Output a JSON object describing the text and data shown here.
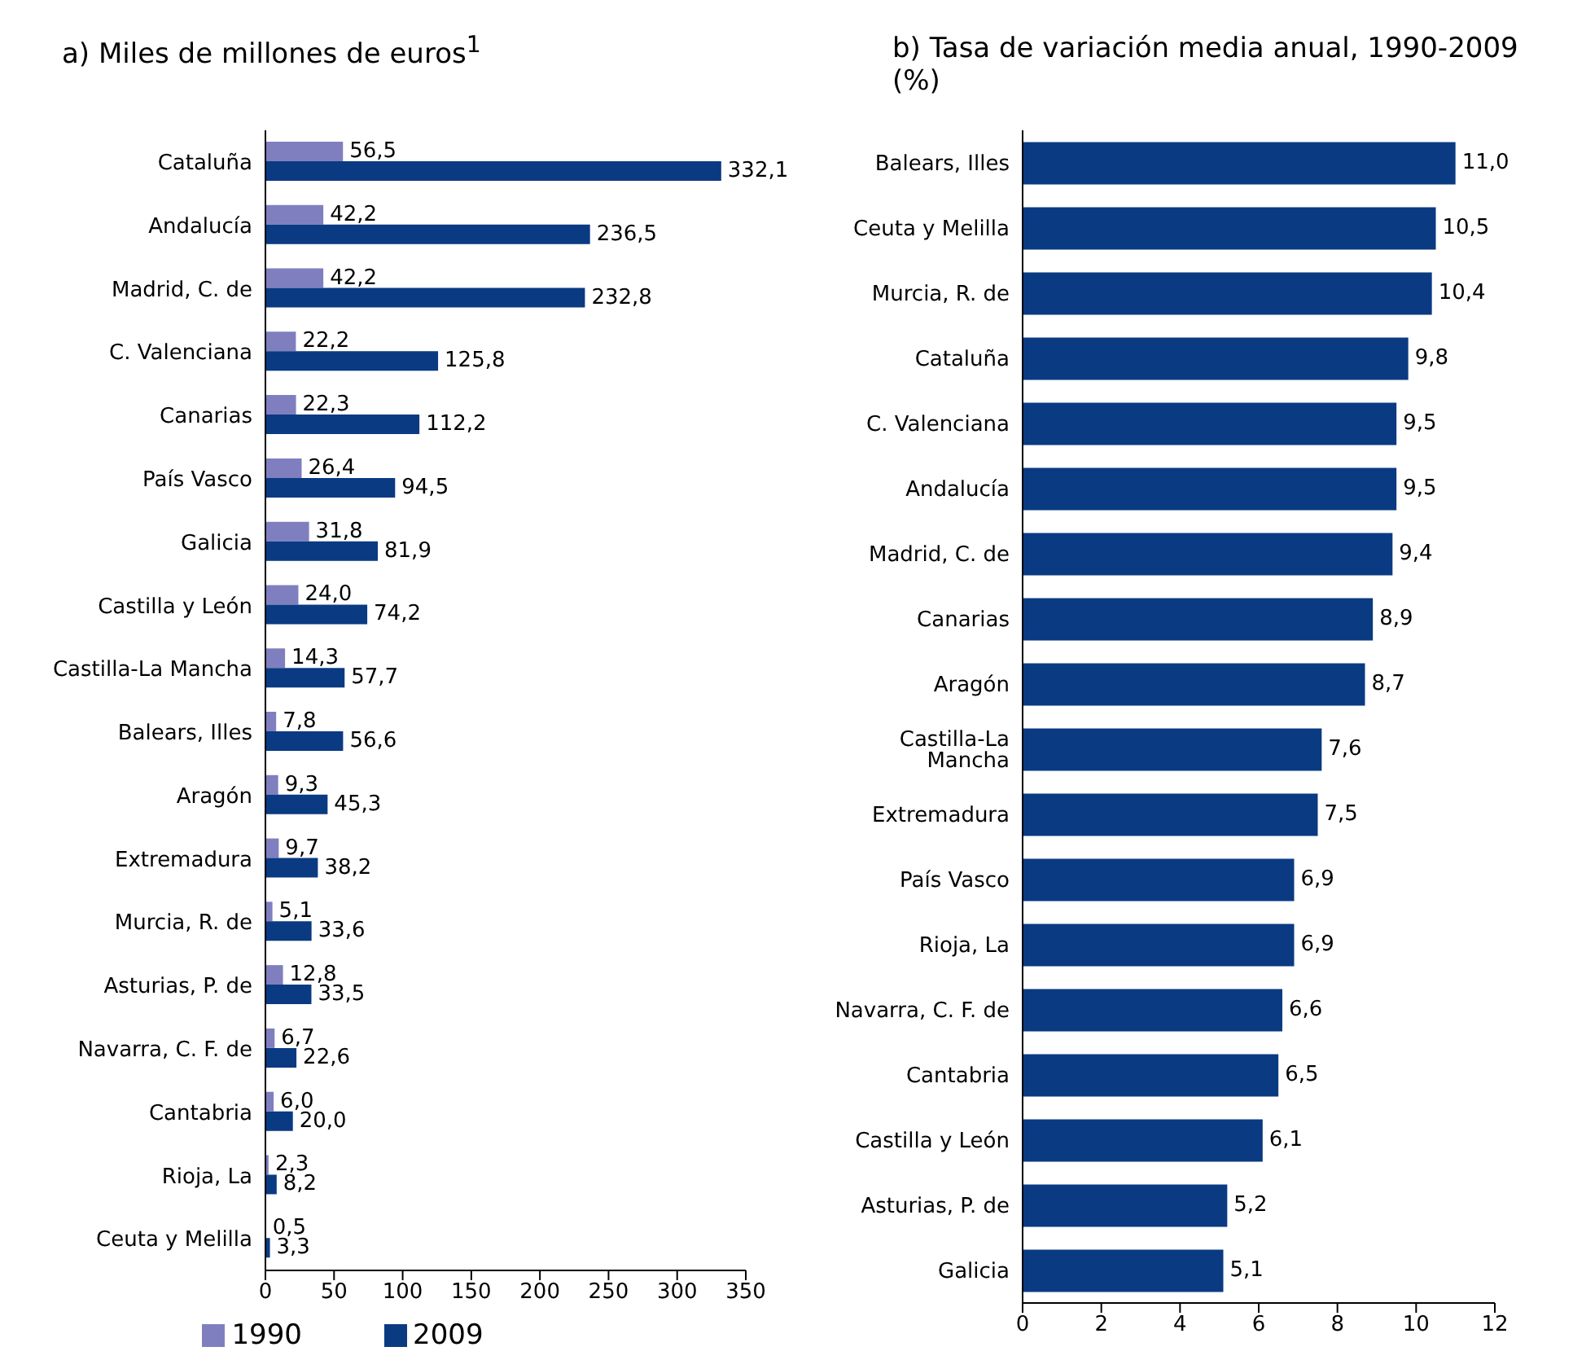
{
  "chart_data": [
    {
      "type": "bar",
      "orientation": "horizontal",
      "title": "a) Miles de millones de euros$^{1}$",
      "categories": [
        "Cataluña",
        "Andalucía",
        "Madrid, C. de",
        "C. Valenciana",
        "Canarias",
        "País Vasco",
        "Galicia",
        "Castilla y León",
        "Castilla-La Mancha",
        "Balears, Illes",
        "Aragón",
        "Extremadura",
        "Murcia, R. de",
        "Asturias, P. de",
        "Navarra, C. F. de",
        "Cantabria",
        "Rioja, La",
        "Ceuta y Melilla"
      ],
      "series": [
        {
          "name": "1990",
          "color": "#7f7fc0",
          "values": [
            56.5,
            42.2,
            42.2,
            22.2,
            22.3,
            26.4,
            31.8,
            24.0,
            14.3,
            7.8,
            9.3,
            9.7,
            5.1,
            12.8,
            6.7,
            6.0,
            2.3,
            0.5
          ],
          "value_labels": [
            "56,5",
            "42,2",
            "42,2",
            "22,2",
            "22,3",
            "26,4",
            "31,8",
            "24,0",
            "14,3",
            "7,8",
            "9,3",
            "9,7",
            "5,1",
            "12,8",
            "6,7",
            "6,0",
            "2,3",
            "0,5"
          ]
        },
        {
          "name": "2009",
          "color": "#0a3a82",
          "values": [
            332.1,
            236.5,
            232.8,
            125.8,
            112.2,
            94.5,
            81.9,
            74.2,
            57.7,
            56.6,
            45.3,
            38.2,
            33.6,
            33.5,
            22.6,
            20.0,
            8.2,
            3.3
          ],
          "value_labels": [
            "332,1",
            "236,5",
            "232,8",
            "125,8",
            "112,2",
            "94,5",
            "81,9",
            "74,2",
            "57,7",
            "56,6",
            "45,3",
            "38,2",
            "33,6",
            "33,5",
            "22,6",
            "20,0",
            "8,2",
            "3,3"
          ]
        }
      ],
      "xlim": [
        0,
        350
      ],
      "xticks": [
        0,
        50,
        100,
        150,
        200,
        250,
        300,
        350
      ],
      "legend": "bottom"
    },
    {
      "type": "bar",
      "orientation": "horizontal",
      "title": "b) Tasa de variación media anual, 1990-2009 (%)",
      "categories": [
        "Balears, Illes",
        "Ceuta y Melilla",
        "Murcia, R. de",
        "Cataluña",
        "C. Valenciana",
        "Andalucía",
        "Madrid, C. de",
        "Canarias",
        "Aragón",
        "Castilla-La Mancha",
        "Extremadura",
        "País Vasco",
        "Rioja, La",
        "Navarra, C. F. de",
        "Cantabria",
        "Castilla y León",
        "Asturias, P. de",
        "Galicia"
      ],
      "series": [
        {
          "color": "#0a3a82",
          "values": [
            11.0,
            10.5,
            10.4,
            9.8,
            9.5,
            9.5,
            9.4,
            8.9,
            8.7,
            7.6,
            7.5,
            6.9,
            6.9,
            6.6,
            6.5,
            6.1,
            5.2,
            5.1
          ],
          "value_labels": [
            "11,0",
            "10,5",
            "10,4",
            "9,8",
            "9,5",
            "9,5",
            "9,4",
            "8,9",
            "8,7",
            "7,6",
            "7,5",
            "6,9",
            "6,9",
            "6,6",
            "6,5",
            "6,1",
            "5,2",
            "5,1"
          ]
        }
      ],
      "xlim": [
        0,
        12
      ],
      "xticks": [
        0,
        2,
        4,
        6,
        8,
        10,
        12
      ]
    }
  ]
}
